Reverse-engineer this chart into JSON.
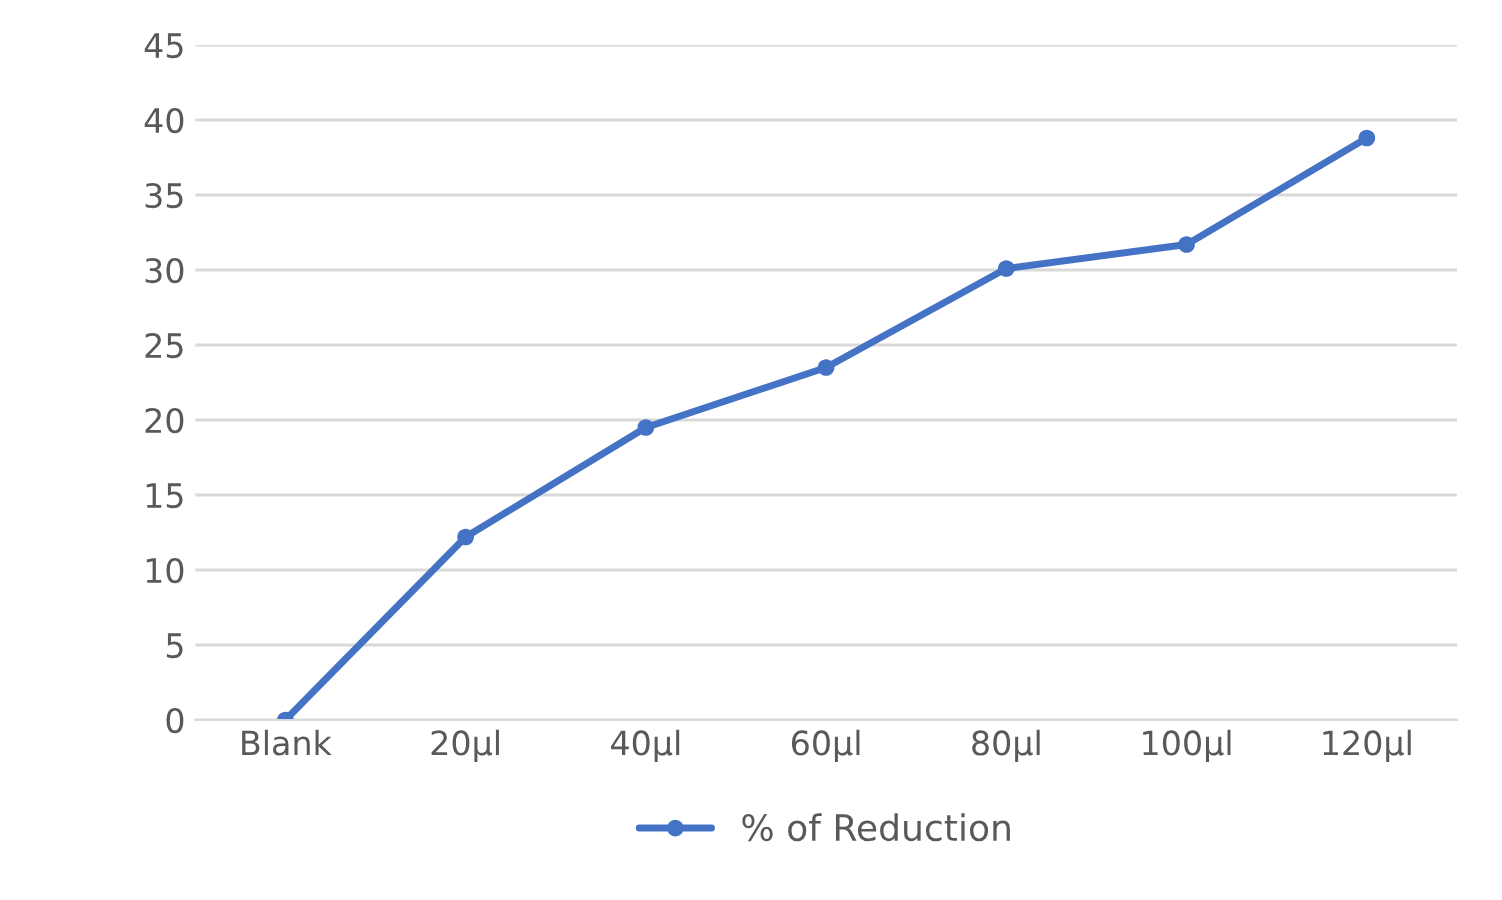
{
  "chart_data": {
    "type": "line",
    "categories": [
      "Blank",
      "20µl",
      "40µl",
      "60µl",
      "80µl",
      "100µl",
      "120µl"
    ],
    "series": [
      {
        "name": "% of Reduction",
        "color": "#4472c4",
        "values": [
          0,
          12.2,
          19.5,
          23.5,
          30.1,
          31.7,
          38.8
        ]
      }
    ],
    "ylim": [
      0,
      45
    ],
    "yticks": [
      0,
      5,
      10,
      15,
      20,
      25,
      30,
      35,
      40,
      45
    ],
    "grid": "y",
    "legend": "bottom",
    "marker": "circle",
    "line_style": "solid"
  }
}
